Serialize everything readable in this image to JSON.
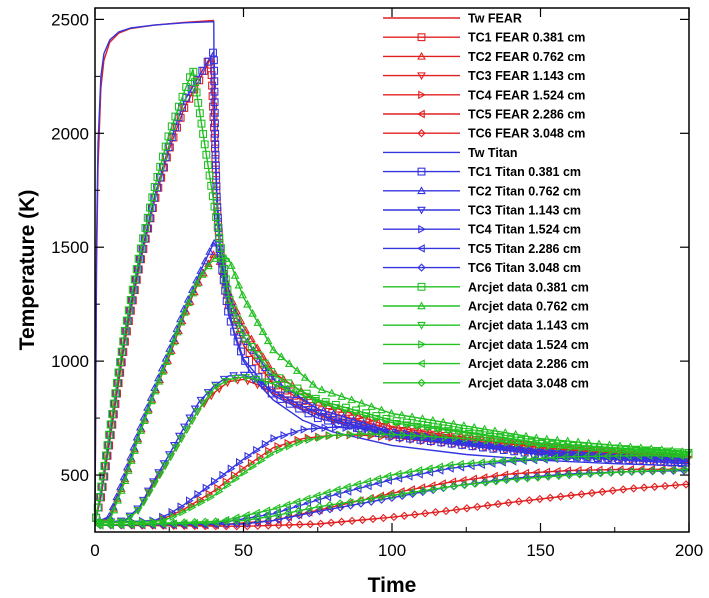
{
  "chart_data": {
    "type": "line",
    "title": "",
    "xlabel": "Time",
    "ylabel": "Temperature (K)",
    "xlim": [
      0,
      200
    ],
    "ylim": [
      250,
      2550
    ],
    "xticks": [
      0,
      50,
      100,
      150,
      200
    ],
    "yticks": [
      500,
      1000,
      1500,
      2000,
      2500
    ],
    "grid": false,
    "legend_position": "top-right",
    "colors": {
      "FEAR": "#e02020",
      "Titan": "#3434e0",
      "Arcjet": "#22c022"
    },
    "series": [
      {
        "name": "Tw FEAR",
        "group": "FEAR",
        "marker": "none",
        "x": [
          0,
          0.5,
          1,
          2,
          3,
          5,
          8,
          12,
          20,
          30,
          40,
          40.1
        ],
        "y": [
          290,
          1400,
          1850,
          2200,
          2320,
          2400,
          2440,
          2460,
          2475,
          2487,
          2495,
          2495
        ]
      },
      {
        "name": "TC1 FEAR 0.381 cm",
        "group": "FEAR",
        "marker": "square",
        "x": [
          0,
          2,
          5,
          10,
          15,
          20,
          25,
          30,
          35,
          39,
          40.5,
          41,
          42,
          45,
          50,
          60,
          75,
          100,
          150,
          200
        ],
        "y": [
          290,
          400,
          650,
          1080,
          1420,
          1700,
          1930,
          2110,
          2230,
          2330,
          1900,
          1700,
          1500,
          1250,
          1070,
          900,
          790,
          700,
          620,
          570
        ]
      },
      {
        "name": "TC2 FEAR 0.762 cm",
        "group": "FEAR",
        "marker": "triangle-up",
        "x": [
          0,
          5,
          10,
          15,
          20,
          25,
          30,
          35,
          40,
          42,
          45,
          50,
          60,
          75,
          100,
          150,
          200
        ],
        "y": [
          290,
          310,
          480,
          680,
          860,
          1020,
          1200,
          1350,
          1470,
          1440,
          1300,
          1150,
          950,
          820,
          710,
          620,
          570
        ]
      },
      {
        "name": "TC3 FEAR 1.143 cm",
        "group": "FEAR",
        "marker": "triangle-down",
        "x": [
          0,
          10,
          15,
          20,
          25,
          30,
          35,
          40,
          45,
          50,
          55,
          60,
          70,
          80,
          100,
          150,
          200
        ],
        "y": [
          290,
          295,
          350,
          470,
          570,
          680,
          790,
          860,
          910,
          920,
          895,
          860,
          790,
          740,
          680,
          610,
          570
        ]
      },
      {
        "name": "TC4 FEAR 1.524 cm",
        "group": "FEAR",
        "marker": "triangle-right",
        "x": [
          0,
          20,
          25,
          30,
          40,
          50,
          60,
          70,
          80,
          90,
          100,
          125,
          150,
          175,
          200
        ],
        "y": [
          290,
          295,
          320,
          350,
          430,
          530,
          620,
          660,
          675,
          675,
          665,
          630,
          595,
          570,
          550
        ]
      },
      {
        "name": "TC5 FEAR 2.286 cm",
        "group": "FEAR",
        "marker": "triangle-left",
        "x": [
          0,
          40,
          60,
          80,
          100,
          120,
          140,
          160,
          180,
          200
        ],
        "y": [
          280,
          280,
          300,
          360,
          420,
          470,
          505,
          520,
          525,
          525
        ]
      },
      {
        "name": "TC6 FEAR 3.048 cm",
        "group": "FEAR",
        "marker": "diamond",
        "x": [
          0,
          50,
          75,
          100,
          120,
          140,
          160,
          180,
          200
        ],
        "y": [
          280,
          275,
          285,
          315,
          345,
          380,
          410,
          440,
          460
        ]
      },
      {
        "name": "Tw Titan",
        "group": "Titan",
        "marker": "none",
        "x": [
          0,
          0.5,
          1,
          2,
          3,
          5,
          8,
          12,
          20,
          30,
          40,
          40.1,
          40.3,
          41,
          42,
          44,
          47,
          50,
          55,
          60,
          70,
          80,
          100,
          125,
          150,
          175,
          200
        ],
        "y": [
          290,
          1500,
          1950,
          2250,
          2350,
          2410,
          2445,
          2462,
          2475,
          2485,
          2490,
          2200,
          2000,
          1750,
          1550,
          1300,
          1110,
          1000,
          900,
          830,
          740,
          690,
          630,
          590,
          565,
          550,
          540
        ]
      },
      {
        "name": "TC1 Titan 0.381 cm",
        "group": "Titan",
        "marker": "square",
        "x": [
          0,
          2,
          5,
          10,
          15,
          20,
          25,
          30,
          35,
          40,
          40.5,
          41,
          42,
          45,
          50,
          60,
          75,
          100,
          150,
          200
        ],
        "y": [
          290,
          420,
          680,
          1110,
          1440,
          1720,
          1950,
          2140,
          2250,
          2360,
          1950,
          1720,
          1480,
          1200,
          1010,
          850,
          750,
          670,
          590,
          550
        ]
      },
      {
        "name": "TC2 Titan 0.762 cm",
        "group": "Titan",
        "marker": "triangle-up",
        "x": [
          0,
          5,
          10,
          15,
          20,
          25,
          30,
          35,
          40,
          42,
          45,
          50,
          60,
          75,
          100,
          150,
          200
        ],
        "y": [
          290,
          320,
          500,
          700,
          880,
          1050,
          1230,
          1380,
          1520,
          1480,
          1290,
          1110,
          920,
          790,
          690,
          600,
          560
        ]
      },
      {
        "name": "TC3 Titan 1.143 cm",
        "group": "Titan",
        "marker": "triangle-down",
        "x": [
          0,
          10,
          15,
          20,
          25,
          30,
          35,
          40,
          45,
          50,
          55,
          60,
          70,
          80,
          100,
          150,
          200
        ],
        "y": [
          290,
          300,
          360,
          480,
          590,
          710,
          820,
          890,
          935,
          940,
          910,
          870,
          800,
          745,
          675,
          600,
          560
        ]
      },
      {
        "name": "TC4 Titan 1.524 cm",
        "group": "Titan",
        "marker": "triangle-right",
        "x": [
          0,
          20,
          25,
          30,
          40,
          50,
          60,
          70,
          80,
          90,
          100,
          125,
          150,
          175,
          200
        ],
        "y": [
          290,
          300,
          330,
          370,
          470,
          570,
          660,
          700,
          710,
          705,
          690,
          640,
          600,
          575,
          560
        ]
      },
      {
        "name": "TC5 Titan 2.286 cm",
        "group": "Titan",
        "marker": "triangle-left",
        "x": [
          0,
          40,
          60,
          80,
          100,
          120,
          140,
          160,
          180,
          200
        ],
        "y": [
          280,
          285,
          330,
          410,
          480,
          530,
          560,
          575,
          575,
          575
        ]
      },
      {
        "name": "TC6 Titan 3.048 cm",
        "group": "Titan",
        "marker": "diamond",
        "x": [
          0,
          50,
          60,
          75,
          100,
          120,
          140,
          160,
          180,
          200
        ],
        "y": [
          280,
          285,
          300,
          340,
          400,
          450,
          485,
          505,
          515,
          520
        ]
      },
      {
        "name": "Arcjet data 0.381 cm",
        "group": "Arcjet",
        "marker": "square",
        "x": [
          0,
          2,
          5,
          10,
          15,
          20,
          25,
          30,
          33,
          45,
          50,
          60,
          75,
          100,
          150,
          200
        ],
        "y": [
          290,
          440,
          700,
          1130,
          1470,
          1760,
          2000,
          2180,
          2280,
          1280,
          1110,
          940,
          830,
          740,
          640,
          590
        ]
      },
      {
        "name": "Arcjet data 0.762 cm",
        "group": "Arcjet",
        "marker": "triangle-up",
        "x": [
          0,
          5,
          10,
          15,
          20,
          25,
          30,
          35,
          40,
          45,
          50,
          60,
          75,
          100,
          150,
          200
        ],
        "y": [
          290,
          300,
          470,
          680,
          860,
          1030,
          1210,
          1360,
          1450,
          1450,
          1280,
          1050,
          880,
          770,
          660,
          600
        ]
      },
      {
        "name": "Arcjet data 1.143 cm",
        "group": "Arcjet",
        "marker": "triangle-down",
        "x": [
          0,
          10,
          15,
          20,
          25,
          30,
          35,
          40,
          45,
          50,
          55,
          60,
          70,
          80,
          100,
          150,
          200
        ],
        "y": [
          290,
          295,
          350,
          460,
          570,
          680,
          790,
          880,
          920,
          930,
          920,
          900,
          850,
          800,
          730,
          640,
          600
        ]
      },
      {
        "name": "Arcjet data 1.524 cm",
        "group": "Arcjet",
        "marker": "triangle-right",
        "x": [
          0,
          20,
          25,
          30,
          40,
          50,
          60,
          70,
          80,
          90,
          100,
          125,
          150,
          175,
          200
        ],
        "y": [
          290,
          295,
          310,
          340,
          410,
          510,
          600,
          650,
          675,
          680,
          678,
          660,
          630,
          605,
          590
        ]
      },
      {
        "name": "Arcjet data 2.286 cm",
        "group": "Arcjet",
        "marker": "triangle-left",
        "x": [
          0,
          40,
          60,
          80,
          100,
          120,
          140,
          160,
          180,
          200
        ],
        "y": [
          280,
          290,
          350,
          430,
          500,
          545,
          565,
          580,
          585,
          585
        ]
      },
      {
        "name": "Arcjet data 3.048 cm",
        "group": "Arcjet",
        "marker": "diamond",
        "x": [
          0,
          50,
          60,
          75,
          100,
          120,
          140,
          160,
          180,
          200
        ],
        "y": [
          280,
          300,
          320,
          360,
          410,
          450,
          480,
          500,
          515,
          525
        ]
      }
    ]
  }
}
